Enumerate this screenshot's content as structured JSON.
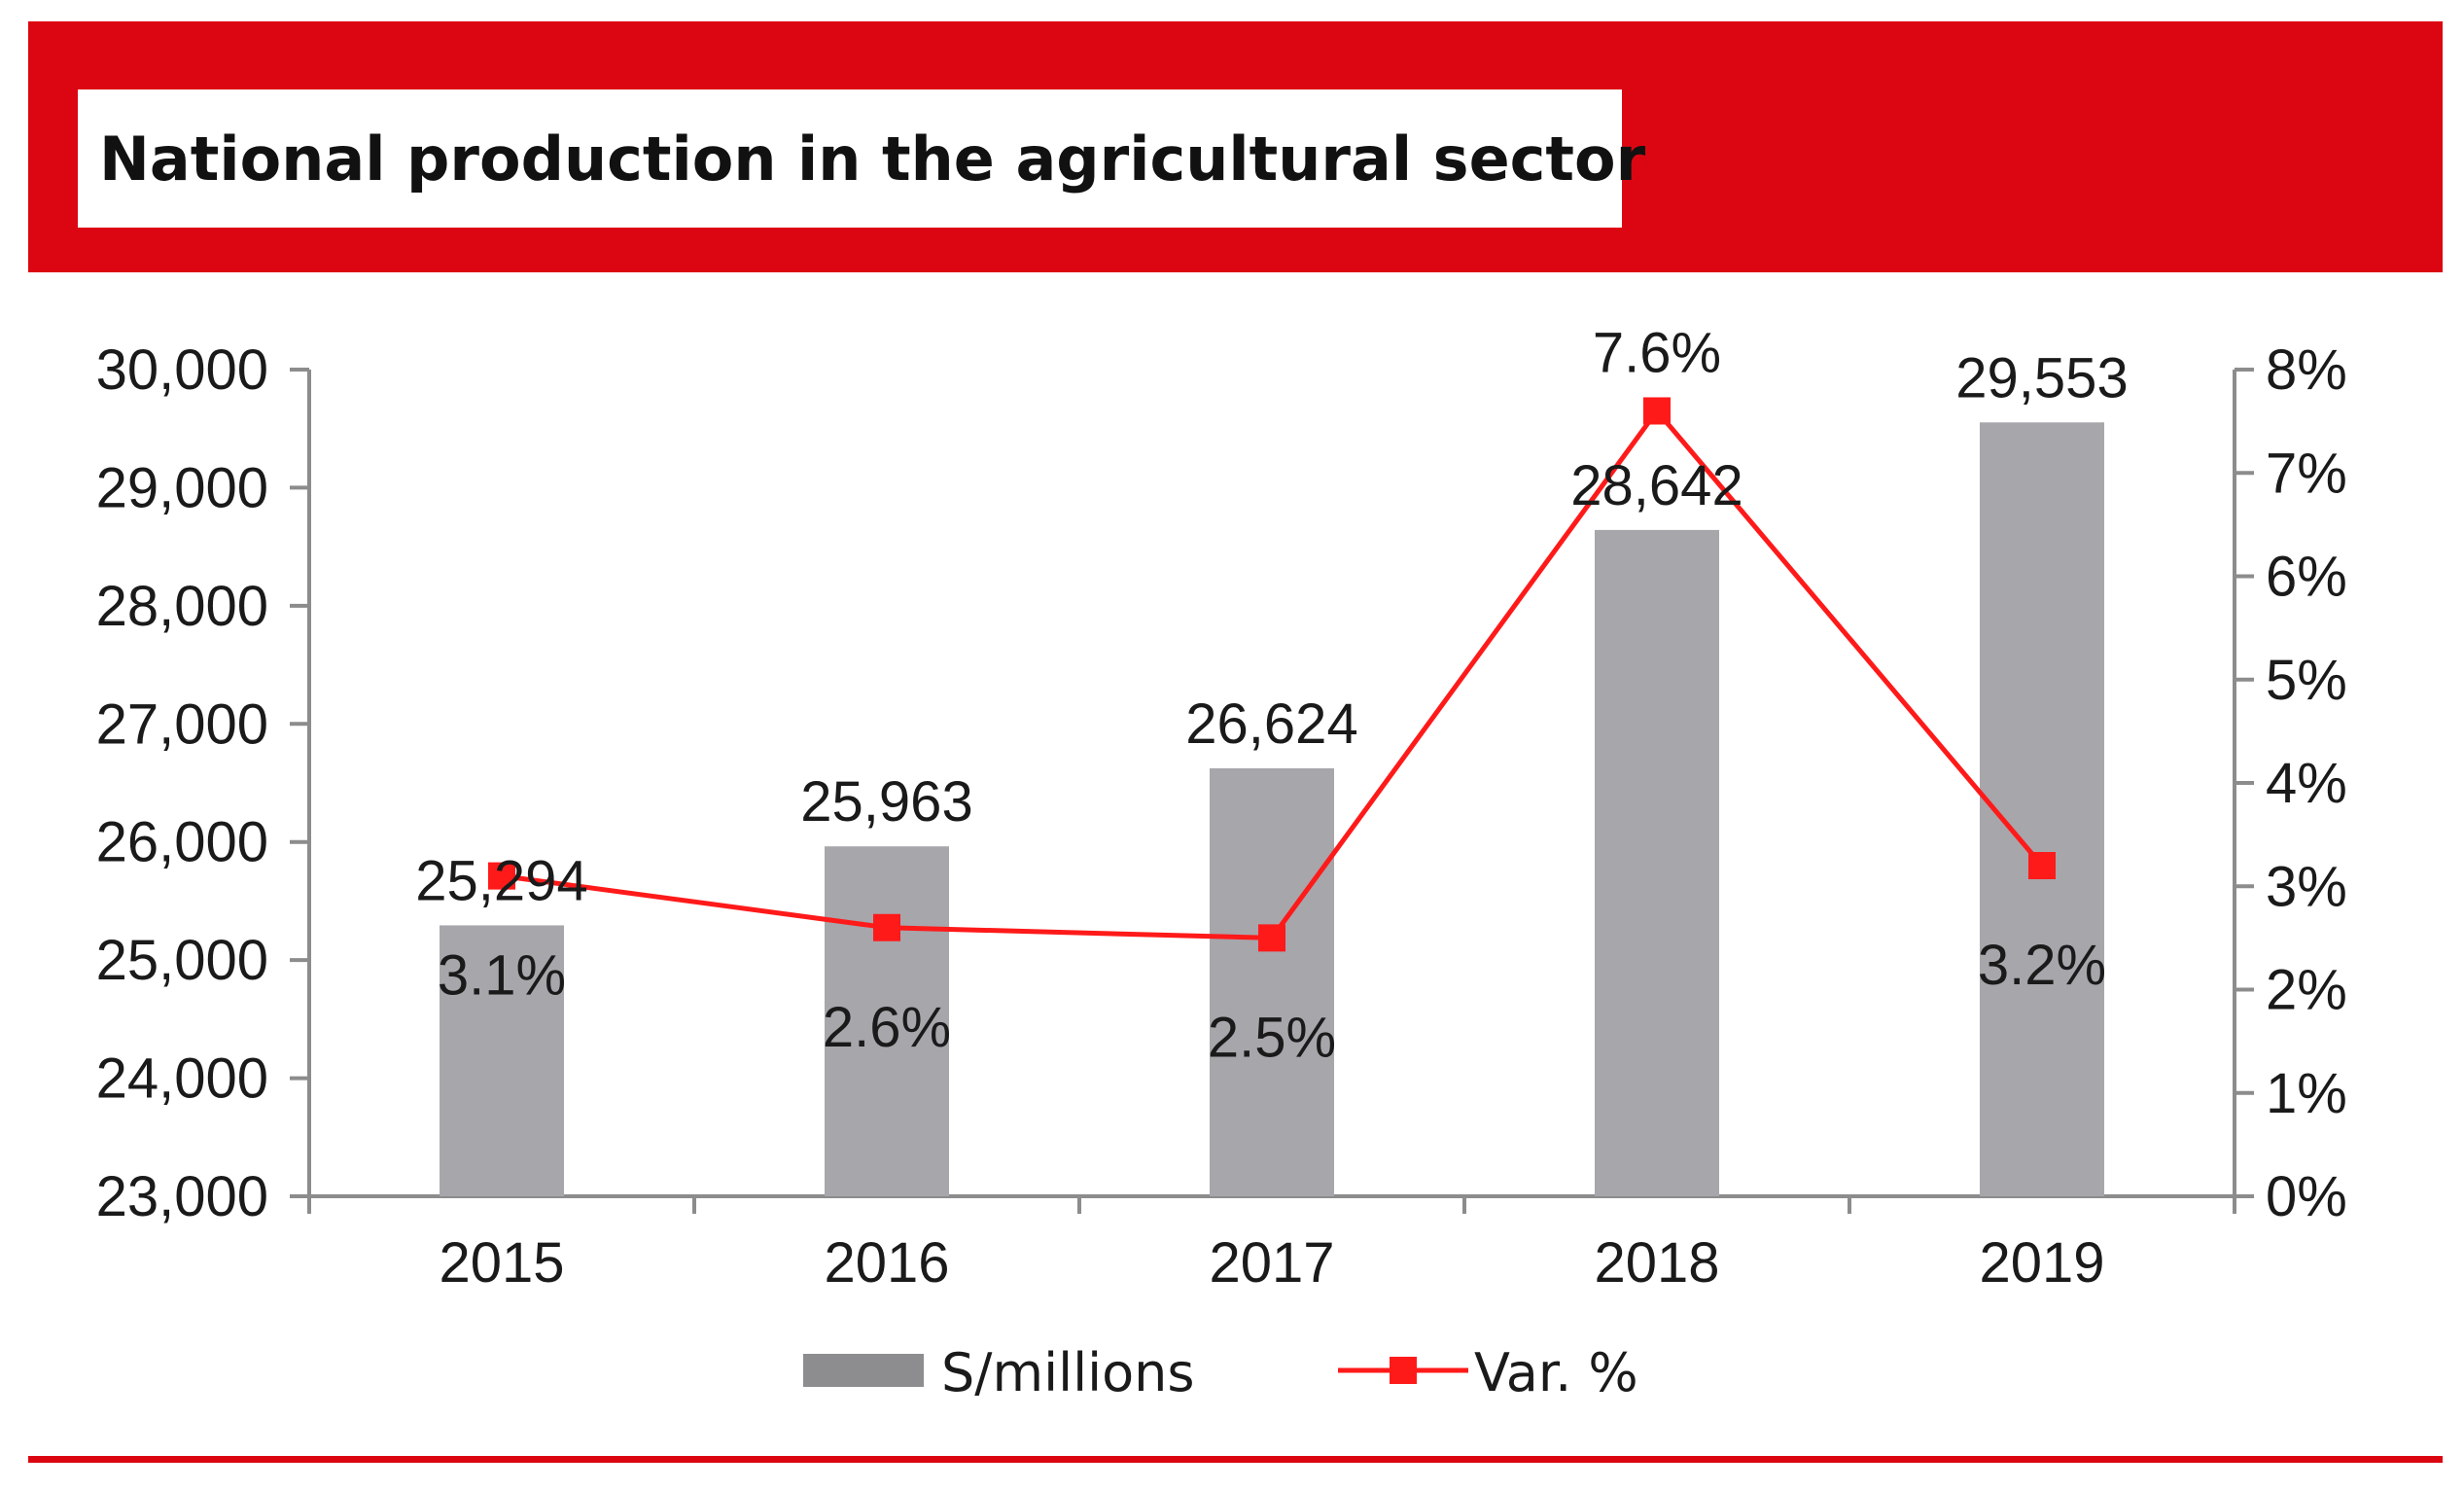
{
  "header": {
    "title": "National production in the agricultural sector"
  },
  "colors": {
    "brand_red": "#dc0612",
    "bar_gray": "#a7a6ab",
    "line_red": "#ff1a1a"
  },
  "chart_data": {
    "type": "bar",
    "title": "National production in the agricultural sector",
    "categories": [
      "2015",
      "2016",
      "2017",
      "2018",
      "2019"
    ],
    "series": [
      {
        "name": "S/millions",
        "type": "bar",
        "axis": "left",
        "values": [
          25294,
          25963,
          26624,
          28642,
          29553
        ],
        "labels": [
          "25,294",
          "25,963",
          "26,624",
          "28,642",
          "29,553"
        ]
      },
      {
        "name": "Var. %",
        "type": "line",
        "axis": "right",
        "values": [
          3.1,
          2.6,
          2.5,
          7.6,
          3.2
        ],
        "labels": [
          "3.1%",
          "2.6%",
          "2.5%",
          "7.6%",
          "3.2%"
        ]
      }
    ],
    "y_left": {
      "min": 23000,
      "max": 30000,
      "ticks": [
        23000,
        24000,
        25000,
        26000,
        27000,
        28000,
        29000,
        30000
      ],
      "tick_labels": [
        "23,000",
        "24,000",
        "25,000",
        "26,000",
        "27,000",
        "28,000",
        "29,000",
        "30,000"
      ]
    },
    "y_right": {
      "min": 0,
      "max": 8,
      "ticks": [
        0,
        1,
        2,
        3,
        4,
        5,
        6,
        7,
        8
      ],
      "tick_labels": [
        "0%",
        "1%",
        "2%",
        "3%",
        "4%",
        "5%",
        "6%",
        "7%",
        "8%"
      ]
    },
    "legend": {
      "position": "bottom",
      "items": [
        {
          "label": "S/millions",
          "kind": "bar"
        },
        {
          "label": "Var. %",
          "kind": "line-marker"
        }
      ]
    },
    "grid": false
  }
}
